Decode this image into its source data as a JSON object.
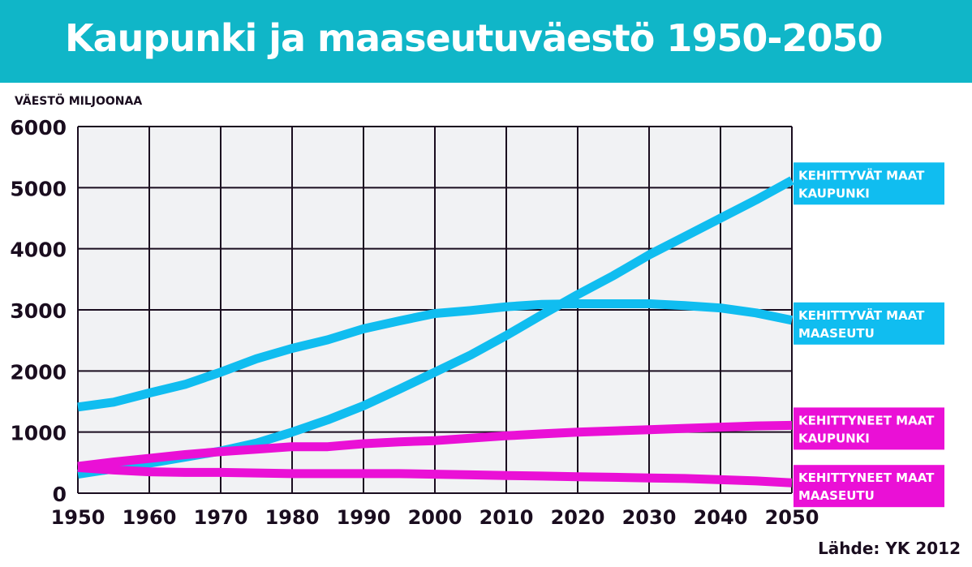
{
  "title": "Kaupunki ja maaseutuväestö 1950-2050",
  "source": "Lähde:  YK 2012",
  "colors": {
    "header": "#10b6c8",
    "developing": "#10bdf0",
    "developed": "#ea10d6",
    "plot_bg": "#f1f2f4",
    "text": "#1a0d1f"
  },
  "chart_data": {
    "type": "line",
    "ylabel": "VÄESTÖ MILJOONAA",
    "xlim": [
      1950,
      2050
    ],
    "ylim": [
      0,
      6000
    ],
    "x_ticks": [
      1950,
      1960,
      1970,
      1980,
      1990,
      2000,
      2010,
      2020,
      2030,
      2040,
      2050
    ],
    "y_ticks": [
      0,
      1000,
      2000,
      3000,
      4000,
      5000,
      6000
    ],
    "grid": true,
    "x": [
      1950,
      1955,
      1960,
      1965,
      1970,
      1975,
      1980,
      1985,
      1990,
      1995,
      2000,
      2005,
      2010,
      2015,
      2020,
      2025,
      2030,
      2035,
      2040,
      2045,
      2050
    ],
    "series": [
      {
        "label_lines": [
          "KEHITTYVÄT MAAT",
          "KAUPUNKI"
        ],
        "color_key": "developing",
        "values": [
          310,
          400,
          490,
          590,
          690,
          820,
          1000,
          1200,
          1430,
          1700,
          1980,
          2260,
          2580,
          2920,
          3250,
          3560,
          3900,
          4200,
          4500,
          4800,
          5120
        ]
      },
      {
        "label_lines": [
          "KEHITTYVÄT MAAT",
          "MAASEUTU"
        ],
        "color_key": "developing",
        "values": [
          1410,
          1490,
          1640,
          1780,
          1980,
          2200,
          2370,
          2510,
          2690,
          2820,
          2940,
          2990,
          3050,
          3090,
          3100,
          3100,
          3100,
          3070,
          3030,
          2950,
          2830
        ]
      },
      {
        "label_lines": [
          "KEHITTYNEET MAAT",
          "KAUPUNKI"
        ],
        "color_key": "developed",
        "values": [
          440,
          510,
          570,
          630,
          680,
          720,
          760,
          760,
          810,
          840,
          860,
          900,
          940,
          970,
          1000,
          1020,
          1040,
          1060,
          1080,
          1100,
          1110
        ]
      },
      {
        "label_lines": [
          "KEHITTYNEET MAAT",
          "MAASEUTU"
        ],
        "color_key": "developed",
        "values": [
          420,
          380,
          350,
          340,
          340,
          330,
          320,
          320,
          320,
          320,
          310,
          300,
          290,
          280,
          270,
          260,
          250,
          240,
          220,
          200,
          170
        ]
      }
    ],
    "label_anchor_values": [
      5120,
      2830,
      1110,
      170
    ]
  }
}
